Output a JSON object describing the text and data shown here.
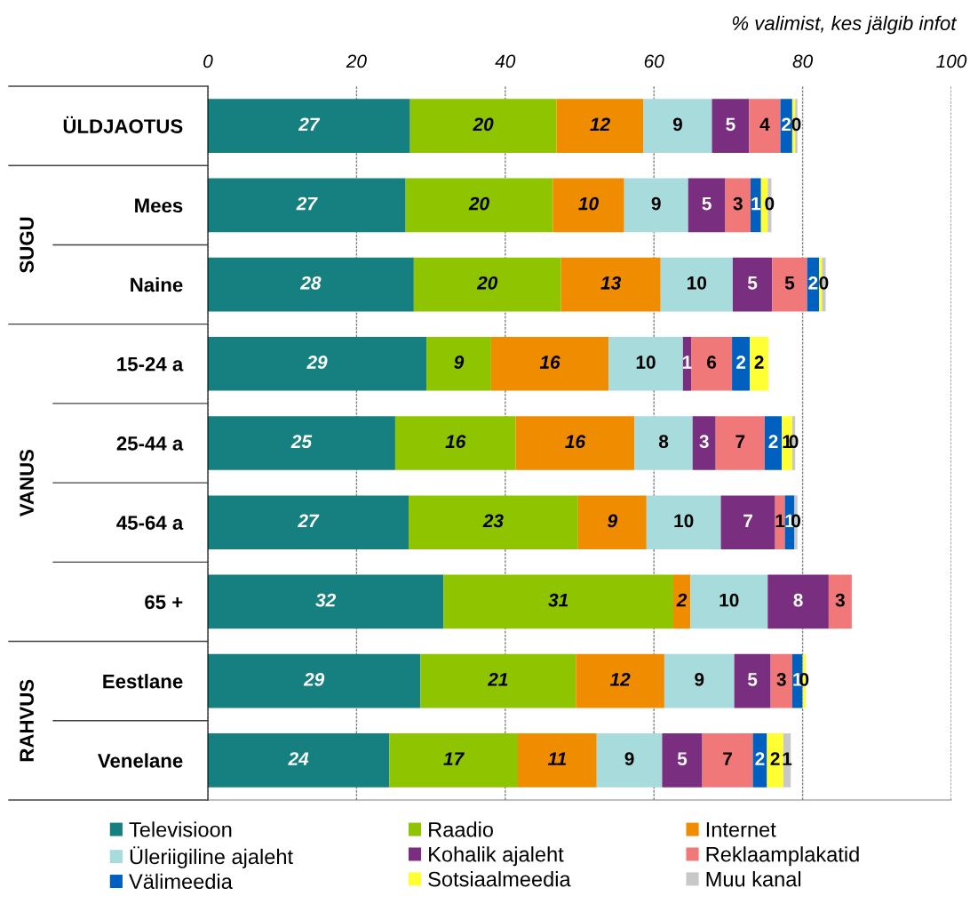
{
  "chart_data": {
    "type": "bar",
    "orientation": "horizontal",
    "stacked": true,
    "xlabel": "% valimist, kes jälgib infot",
    "categories": [
      "ÜLDJAOTUS",
      "Mees",
      "Naine",
      "15-24 a",
      "25-44 a",
      "45-64 a",
      "65 +",
      "Eestlane",
      "Venelane"
    ],
    "annotations": [
      "SUGU",
      "VANUS",
      "RAHVUS"
    ],
    "xlim": [
      0,
      100
    ],
    "xticks": [
      0,
      20,
      40,
      60,
      80,
      100
    ],
    "grid": "x",
    "legend": "bottom",
    "series": [
      {
        "name": "Televisioon",
        "color": "#168080",
        "values": [
          27.2,
          26.6,
          27.7,
          29.4,
          25.2,
          27.0,
          31.7,
          28.6,
          24.4
        ],
        "value_labels": [
          "27",
          "27",
          "28",
          "29",
          "25",
          "27",
          "32",
          "29",
          "24"
        ]
      },
      {
        "name": "Raadio",
        "color": "#8fc400",
        "values": [
          19.7,
          19.8,
          19.8,
          8.7,
          16.2,
          22.8,
          30.9,
          20.9,
          17.3
        ],
        "value_labels": [
          "20",
          "20",
          "20",
          "9",
          "16",
          "23",
          "31",
          "21",
          "17"
        ]
      },
      {
        "name": "Internet",
        "color": "#f08c00",
        "values": [
          11.7,
          9.6,
          13.4,
          15.8,
          16.0,
          9.2,
          2.3,
          11.9,
          10.6
        ],
        "value_labels": [
          "12",
          "10",
          "13",
          "16",
          "16",
          "9",
          "2",
          "12",
          "11"
        ]
      },
      {
        "name": "Üleriigiline ajaleht",
        "color": "#a8dcdc",
        "values": [
          9.2,
          8.6,
          9.7,
          10.0,
          7.8,
          10.0,
          10.4,
          9.4,
          8.8
        ],
        "value_labels": [
          "9",
          "9",
          "10",
          "10",
          "8",
          "10",
          "10",
          "9",
          "9"
        ]
      },
      {
        "name": "Kohalik ajaleht",
        "color": "#7a2e80",
        "values": [
          5.0,
          5.0,
          5.3,
          1.1,
          3.1,
          7.3,
          8.2,
          4.9,
          5.4
        ],
        "value_labels": [
          "5",
          "5",
          "5",
          "1",
          "3",
          "7",
          "8",
          "5",
          "5"
        ]
      },
      {
        "name": "Reklaamplakatid",
        "color": "#f07878",
        "values": [
          4.2,
          3.4,
          4.7,
          5.5,
          6.6,
          1.3,
          3.1,
          2.9,
          6.8
        ],
        "value_labels": [
          "4",
          "3",
          "5",
          "6",
          "7",
          "1",
          "3",
          "3",
          "7"
        ]
      },
      {
        "name": "Välimeedia",
        "color": "#0060c0",
        "values": [
          1.6,
          1.4,
          1.6,
          2.4,
          2.3,
          1.3,
          0,
          1.4,
          1.9
        ],
        "value_labels": [
          "2",
          "1",
          "2",
          "2",
          "2",
          "1",
          null,
          "1",
          "2"
        ]
      },
      {
        "name": "Sotsiaalmeedia",
        "color": "#ffff33",
        "values": [
          0.4,
          0.9,
          0.4,
          2.5,
          1.4,
          0,
          0,
          0.4,
          2.2
        ],
        "value_labels": [
          null,
          null,
          null,
          "2",
          "1",
          null,
          null,
          "0",
          "2"
        ]
      },
      {
        "name": "Muu kanal",
        "color": "#c8c8c8",
        "values": [
          0.3,
          0.5,
          0.5,
          0,
          0.4,
          0.4,
          0,
          0,
          1.0
        ],
        "value_labels": [
          "0",
          "0",
          "0",
          null,
          "0",
          "0",
          null,
          null,
          "1"
        ]
      }
    ]
  }
}
